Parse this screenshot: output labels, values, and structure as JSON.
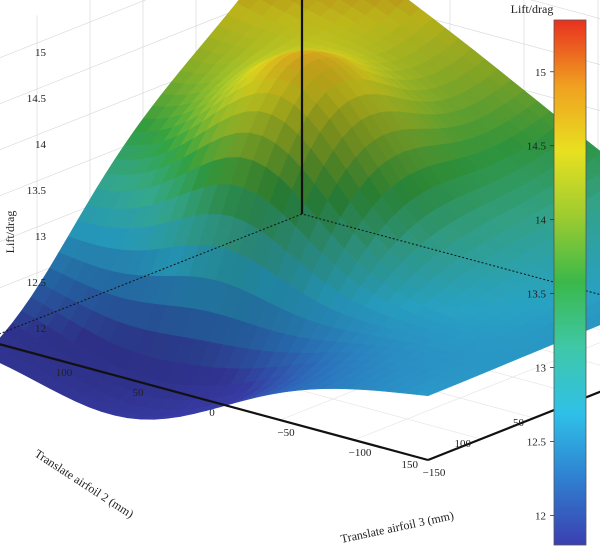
{
  "chart_data": {
    "type": "surface",
    "zlabel": "Lift/drag",
    "xlabel": "Translate airfoil 3 (mm)",
    "ylabel": "Translate airfoil 2 (mm)",
    "colorbar_label": "Lift/drag",
    "xlim": [
      -150,
      150
    ],
    "ylim": [
      -150,
      150
    ],
    "zlim": [
      12,
      15.3
    ],
    "x_ticks": [
      -150,
      -100,
      -50,
      0,
      50,
      100
    ],
    "x_tick_labels": [
      "−150",
      "−100",
      "−50",
      "0",
      "50",
      "100"
    ],
    "y_ticks": [
      -150,
      -100,
      -50,
      0,
      50,
      100,
      150
    ],
    "y_tick_labels": [
      "−150",
      "−100",
      "−50",
      "0",
      "50",
      "100",
      "150"
    ],
    "z_ticks": [
      12,
      12.5,
      13,
      13.5,
      14,
      14.5,
      15
    ],
    "z_tick_labels": [
      "12",
      "12.5",
      "13",
      "13.5",
      "14",
      "14.5",
      "15"
    ],
    "colorbar_ticks": [
      12,
      12.5,
      13,
      13.5,
      14,
      14.5,
      15
    ],
    "colorbar_tick_labels": [
      "12",
      "12.5",
      "13",
      "13.5",
      "14",
      "14.5",
      "15"
    ],
    "colormap": [
      "#3b3fb0",
      "#2f7fd0",
      "#2fc0e8",
      "#3fc8a8",
      "#3ab84a",
      "#9ccc30",
      "#e8e020",
      "#f0a020",
      "#e83020"
    ],
    "corner_values": {
      "x_-150_y_-150": 12.75,
      "x_-150_y_150": 12.7,
      "x_150_y_-150": 15.2,
      "x_150_y_150": 12.0
    },
    "peak": {
      "x": 45,
      "y": 0,
      "z": 14.7
    },
    "grid": true
  }
}
